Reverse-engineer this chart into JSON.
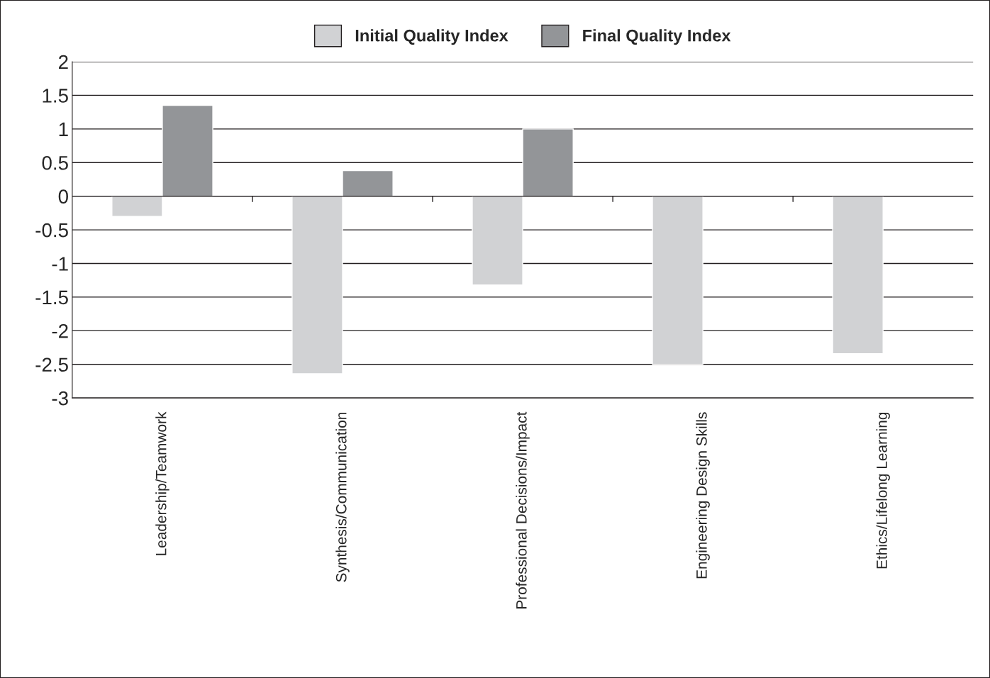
{
  "chart_data": {
    "type": "bar",
    "categories": [
      "Leadership/Teamwork",
      "Synthesis/Communication",
      "Professional Decisions/Impact",
      "Engineering Design Skills",
      "Ethics/Lifelong Learning"
    ],
    "series": [
      {
        "name": "Initial Quality Index",
        "color": "#d1d2d4",
        "values": [
          -0.3,
          -2.64,
          -1.32,
          -2.5,
          -2.34
        ]
      },
      {
        "name": "Final Quality Index",
        "color": "#939598",
        "values": [
          1.35,
          0.38,
          1.0,
          null,
          null
        ]
      }
    ],
    "ylim": [
      -3,
      2
    ],
    "yticks": [
      -3,
      -2.5,
      -2,
      -1.5,
      -1,
      -0.5,
      0,
      0.5,
      1,
      1.5,
      2
    ],
    "grid": "y",
    "legend": "top"
  }
}
